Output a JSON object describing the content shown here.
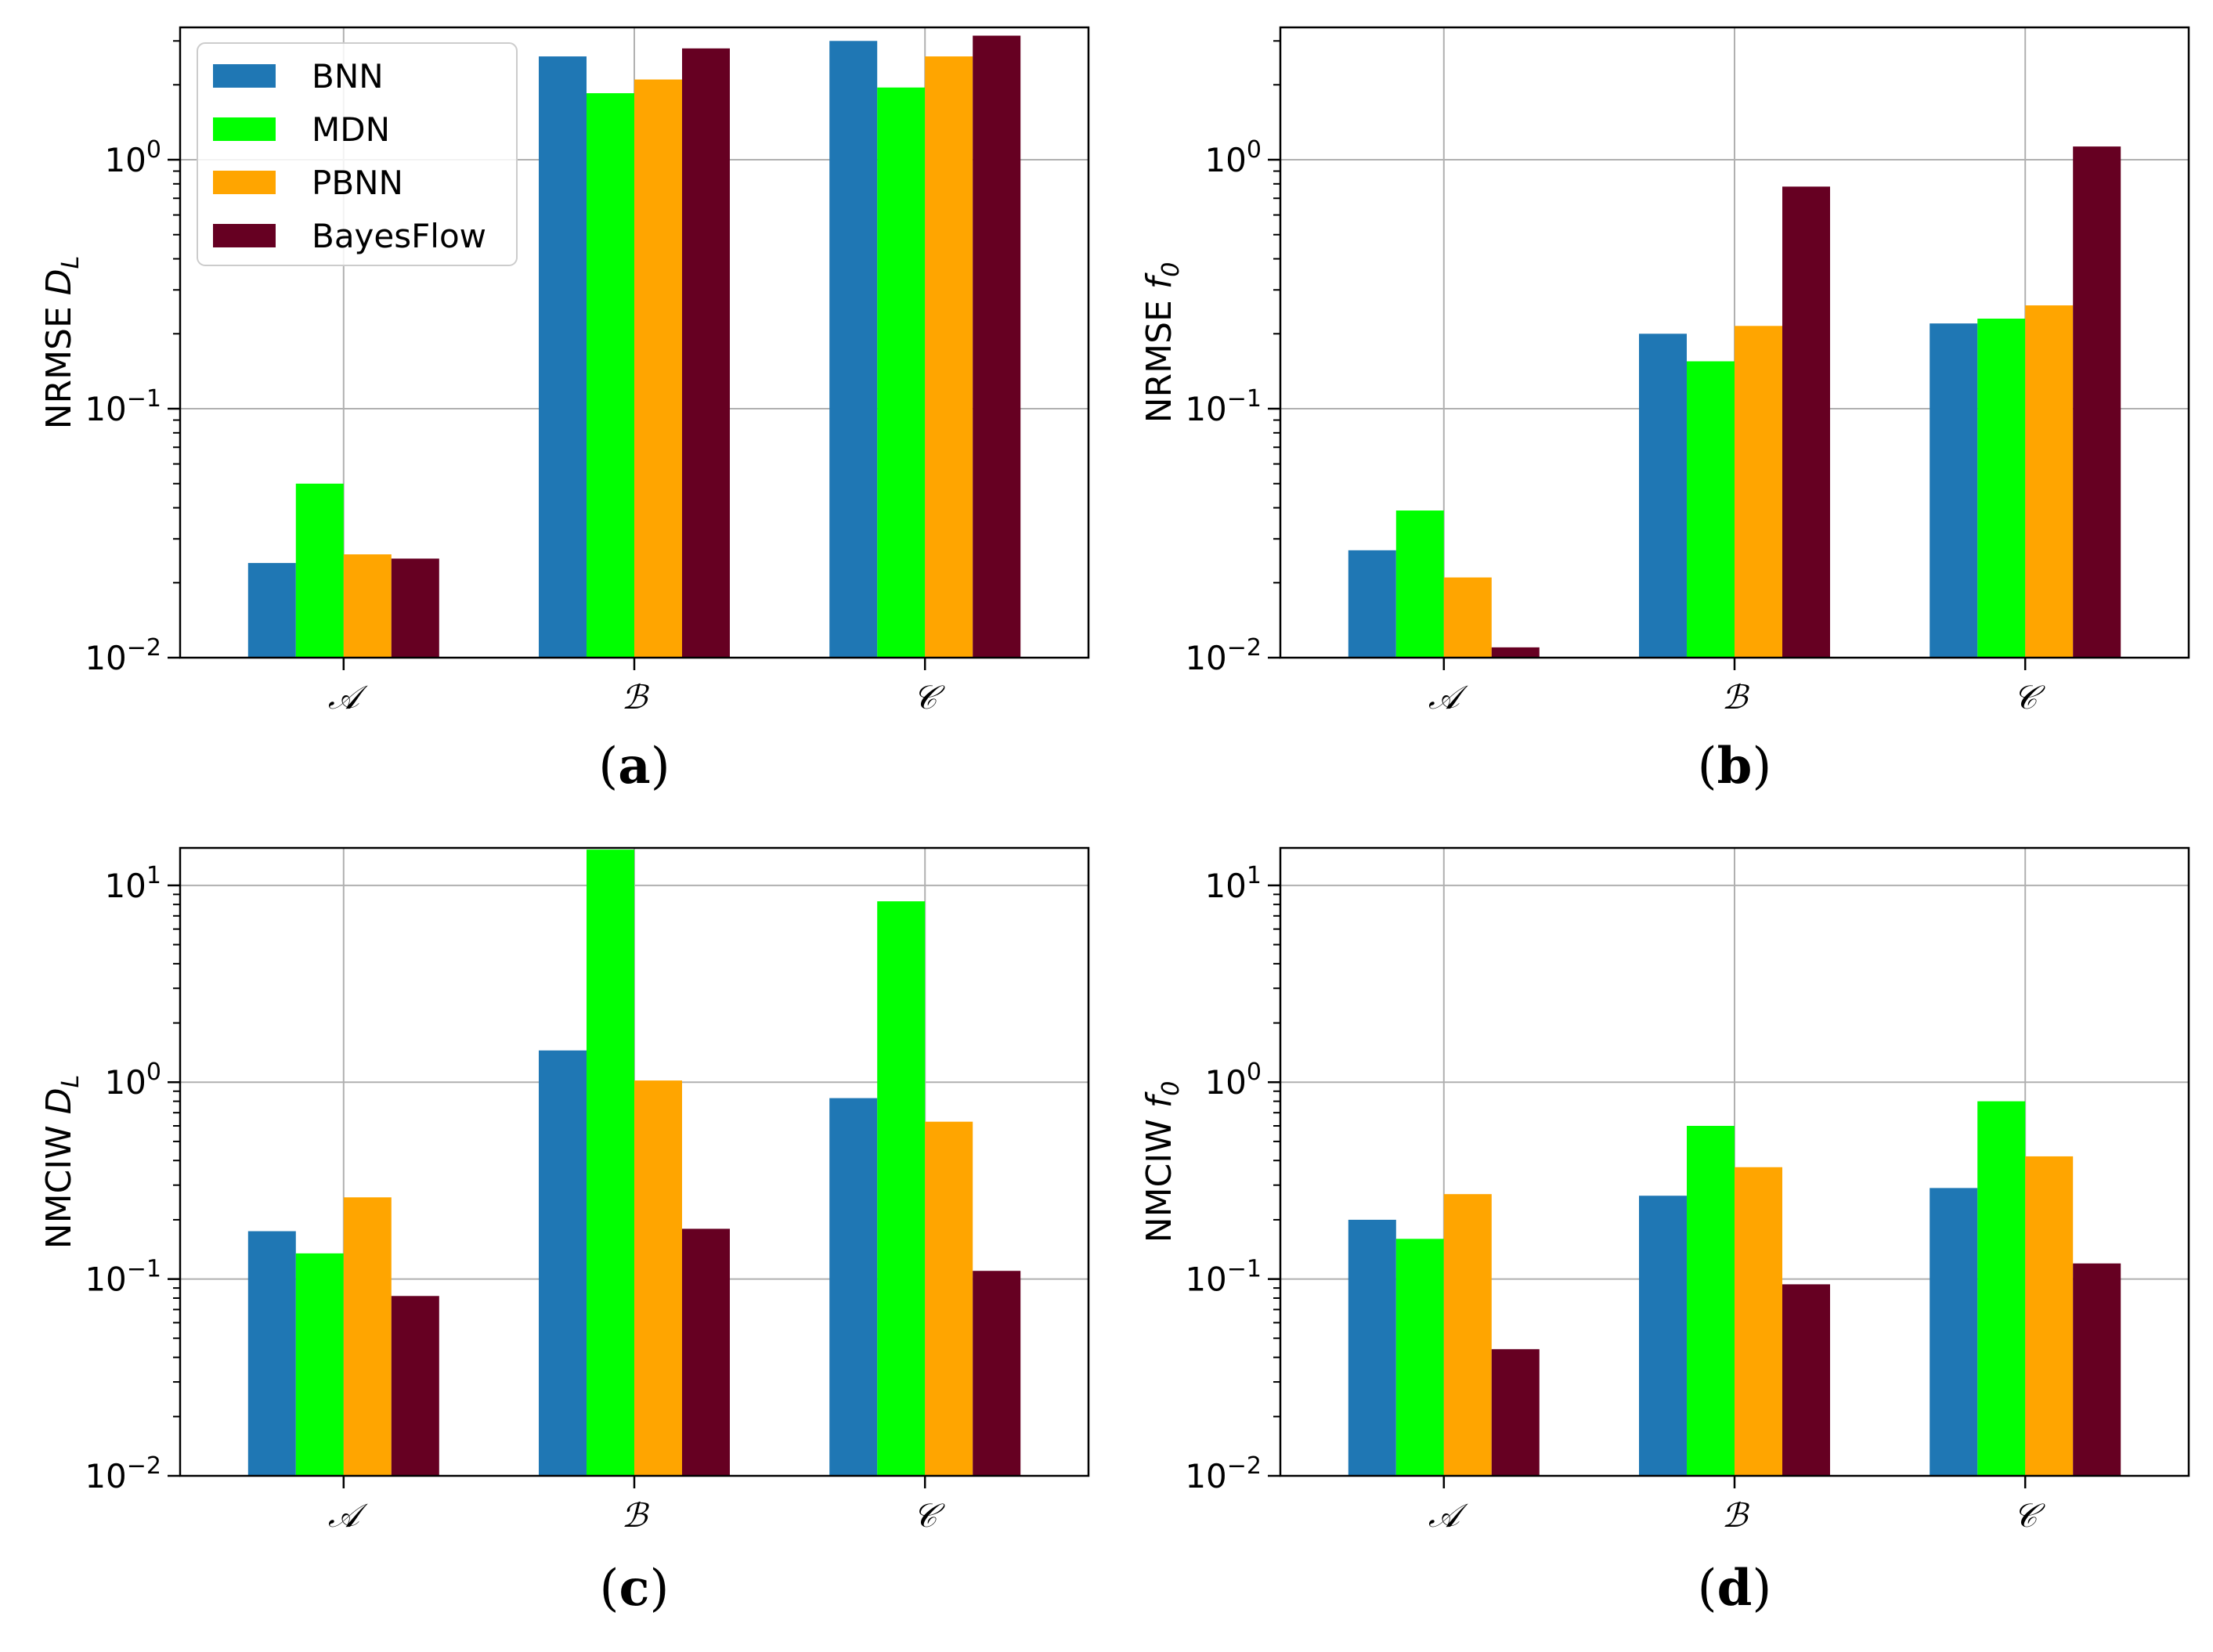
{
  "colors": {
    "BNN": "#1f77b4",
    "MDN": "#00ff00",
    "PBNN": "#ffa500",
    "BayesFlow": "#660022"
  },
  "legend": [
    "BNN",
    "MDN",
    "PBNN",
    "BayesFlow"
  ],
  "chart_data": [
    {
      "type": "bar",
      "caption": "(a)",
      "ylabel": "NRMSE",
      "ylabel_symbol": "D",
      "ylabel_sub": "L",
      "yscale": "log",
      "ylim": [
        0.01,
        3.4
      ],
      "yticks": [
        {
          "value": 0.01,
          "base": "10",
          "exp": "−2"
        },
        {
          "value": 0.1,
          "base": "10",
          "exp": "−1"
        },
        {
          "value": 1,
          "base": "10",
          "exp": "0"
        }
      ],
      "categories": [
        "𝒜",
        "ℬ",
        "𝒞"
      ],
      "series": [
        {
          "name": "BNN",
          "values": [
            0.024,
            2.6,
            3.0
          ]
        },
        {
          "name": "MDN",
          "values": [
            0.05,
            1.85,
            1.95
          ]
        },
        {
          "name": "PBNN",
          "values": [
            0.026,
            2.1,
            2.6
          ]
        },
        {
          "name": "BayesFlow",
          "values": [
            0.025,
            2.8,
            3.15
          ]
        }
      ],
      "show_legend": true
    },
    {
      "type": "bar",
      "caption": "(b)",
      "ylabel": "NRMSE",
      "ylabel_symbol": "f",
      "ylabel_sub": "0",
      "yscale": "log",
      "ylim": [
        0.01,
        3.4
      ],
      "yticks": [
        {
          "value": 0.01,
          "base": "10",
          "exp": "−2"
        },
        {
          "value": 0.1,
          "base": "10",
          "exp": "−1"
        },
        {
          "value": 1,
          "base": "10",
          "exp": "0"
        }
      ],
      "categories": [
        "𝒜",
        "ℬ",
        "𝒞"
      ],
      "series": [
        {
          "name": "BNN",
          "values": [
            0.027,
            0.2,
            0.22
          ]
        },
        {
          "name": "MDN",
          "values": [
            0.039,
            0.155,
            0.23
          ]
        },
        {
          "name": "PBNN",
          "values": [
            0.021,
            0.215,
            0.26
          ]
        },
        {
          "name": "BayesFlow",
          "values": [
            0.011,
            0.78,
            1.13
          ]
        }
      ],
      "show_legend": false
    },
    {
      "type": "bar",
      "caption": "(c)",
      "ylabel": "NMCIW",
      "ylabel_symbol": "D",
      "ylabel_sub": "L",
      "yscale": "log",
      "ylim": [
        0.01,
        15.5
      ],
      "yticks": [
        {
          "value": 0.01,
          "base": "10",
          "exp": "−2"
        },
        {
          "value": 0.1,
          "base": "10",
          "exp": "−1"
        },
        {
          "value": 1,
          "base": "10",
          "exp": "0"
        },
        {
          "value": 10,
          "base": "10",
          "exp": "1"
        }
      ],
      "categories": [
        "𝒜",
        "ℬ",
        "𝒞"
      ],
      "series": [
        {
          "name": "BNN",
          "values": [
            0.175,
            1.45,
            0.83
          ]
        },
        {
          "name": "MDN",
          "values": [
            0.135,
            15.2,
            8.3
          ]
        },
        {
          "name": "PBNN",
          "values": [
            0.26,
            1.02,
            0.63
          ]
        },
        {
          "name": "BayesFlow",
          "values": [
            0.082,
            0.18,
            0.11
          ]
        }
      ],
      "show_legend": false
    },
    {
      "type": "bar",
      "caption": "(d)",
      "ylabel": "NMCIW",
      "ylabel_symbol": "f",
      "ylabel_sub": "0",
      "yscale": "log",
      "ylim": [
        0.01,
        15.5
      ],
      "yticks": [
        {
          "value": 0.01,
          "base": "10",
          "exp": "−2"
        },
        {
          "value": 0.1,
          "base": "10",
          "exp": "−1"
        },
        {
          "value": 1,
          "base": "10",
          "exp": "0"
        },
        {
          "value": 10,
          "base": "10",
          "exp": "1"
        }
      ],
      "categories": [
        "𝒜",
        "ℬ",
        "𝒞"
      ],
      "series": [
        {
          "name": "BNN",
          "values": [
            0.2,
            0.265,
            0.29
          ]
        },
        {
          "name": "MDN",
          "values": [
            0.16,
            0.6,
            0.8
          ]
        },
        {
          "name": "PBNN",
          "values": [
            0.27,
            0.37,
            0.42
          ]
        },
        {
          "name": "BayesFlow",
          "values": [
            0.044,
            0.094,
            0.12
          ]
        }
      ],
      "show_legend": false
    }
  ]
}
